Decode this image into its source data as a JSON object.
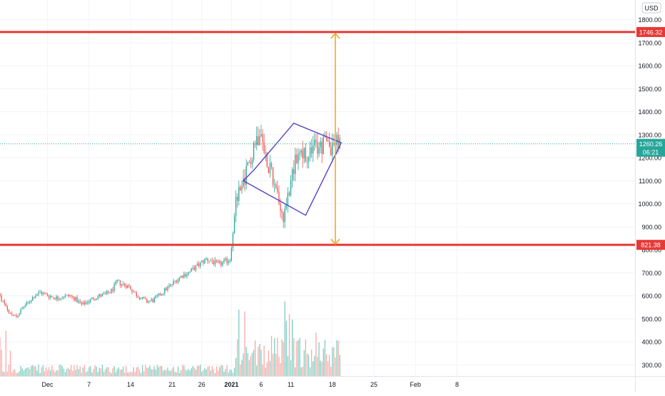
{
  "currency_label": "USD",
  "colors": {
    "background": "#ffffff",
    "grid": "#f0f3fa",
    "axis_text": "#131722",
    "candle_up": "#26a69a",
    "candle_down": "#ef5350",
    "vol_up": "#7fcdbf",
    "vol_down": "#f7a9a7",
    "resistance": "#e53935",
    "pattern": "#5b3fc4",
    "measure": "#f5a623",
    "price_badge": "#26a69a",
    "price_line": "#26a69a"
  },
  "price_badge": {
    "price": "1260.26",
    "countdown": "06:21"
  },
  "levels": [
    {
      "name": "upper-target",
      "price": 1746.32,
      "label": "1746.32"
    },
    {
      "name": "lower-support",
      "price": 821.38,
      "label": "821.38"
    }
  ],
  "chart_data": {
    "type": "candlestick",
    "title": "",
    "instrument_note": "",
    "y_axis": {
      "unit": "USD",
      "ylim": [
        270,
        1870
      ],
      "ticks": [
        300,
        400,
        500,
        600,
        700,
        800,
        900,
        1000,
        1100,
        1200,
        1300,
        1400,
        1500,
        1600,
        1700,
        1800
      ],
      "tick_labels": [
        "300.00",
        "400.00",
        "500.00",
        "600.00",
        "700.00",
        "800.00",
        "900.00",
        "1000.00",
        "1100.00",
        "1200.00",
        "1300.00",
        "1400.00",
        "1500.00",
        "1600.00",
        "1700.00",
        "1800.00"
      ]
    },
    "x_axis": {
      "range_days": [
        0,
        107
      ],
      "ticks": [
        {
          "day": 8,
          "label": "Dec"
        },
        {
          "day": 15,
          "label": "7"
        },
        {
          "day": 22,
          "label": "14"
        },
        {
          "day": 29,
          "label": "21"
        },
        {
          "day": 34,
          "label": "26"
        },
        {
          "day": 39,
          "label": "2021"
        },
        {
          "day": 44,
          "label": "6"
        },
        {
          "day": 49,
          "label": "11"
        },
        {
          "day": 56,
          "label": "18"
        },
        {
          "day": 63,
          "label": "25"
        },
        {
          "day": 70,
          "label": "Feb"
        },
        {
          "day": 77,
          "label": "8"
        }
      ]
    },
    "price_path_days": [
      0,
      1,
      2,
      3,
      4,
      5,
      6,
      7,
      8,
      9,
      10,
      11,
      12,
      13,
      14,
      15,
      16,
      17,
      18,
      19,
      20,
      21,
      22,
      23,
      24,
      25,
      26,
      27,
      28,
      29,
      30,
      31,
      32,
      33,
      34,
      35,
      36,
      37,
      38,
      39,
      40,
      41,
      42,
      43,
      44,
      45,
      46,
      47,
      48,
      49,
      50,
      51,
      52,
      53,
      54,
      55,
      56,
      57
    ],
    "price_path_values": [
      610,
      560,
      520,
      510,
      545,
      570,
      600,
      615,
      605,
      595,
      590,
      598,
      600,
      585,
      560,
      575,
      590,
      600,
      605,
      620,
      660,
      650,
      640,
      610,
      590,
      575,
      580,
      600,
      625,
      645,
      670,
      690,
      700,
      720,
      740,
      760,
      750,
      735,
      745,
      760,
      1000,
      1090,
      1150,
      1260,
      1310,
      1210,
      1140,
      1040,
      940,
      1060,
      1180,
      1240,
      1170,
      1250,
      1240,
      1260,
      1255,
      1260
    ],
    "volume_note": "volume histogram in lower pane"
  },
  "annotations": {
    "diamond": [
      [
        1153,
        43
      ],
      [
        1350,
        49.5
      ],
      [
        1265,
        57.5
      ],
      [
        950,
        51.5
      ],
      [
        1100,
        41
      ]
    ],
    "measure_arrow": {
      "day": 56.5,
      "from_price": 821.38,
      "to_price": 1746.32
    }
  }
}
